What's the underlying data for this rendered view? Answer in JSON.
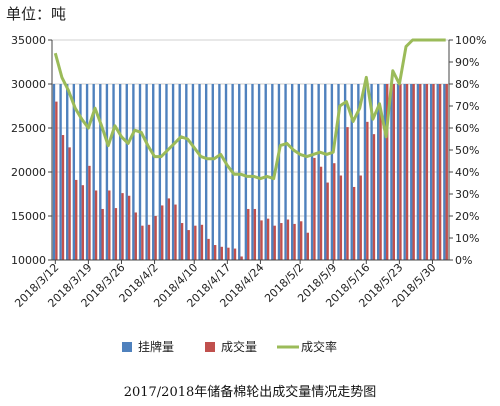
{
  "unit_label": "单位：吨",
  "caption": "2017/2018年储备棉轮出成交量情况走势图",
  "colors": {
    "listed": "#4f81bd",
    "traded": "#c0504d",
    "rate": "#9bbb59",
    "grid": "#d0d0d0",
    "axis": "#444444"
  },
  "chart_data": {
    "type": "bar",
    "title": "2017/2018年储备棉轮出成交量情况走势图",
    "ylabel": "单位：吨",
    "ylim": [
      10000,
      35000
    ],
    "y2lim": [
      0,
      100
    ],
    "yticks": [
      "10000",
      "15000",
      "20000",
      "25000",
      "30000",
      "35000"
    ],
    "y2ticks": [
      "0%",
      "10%",
      "20%",
      "30%",
      "40%",
      "50%",
      "60%",
      "70%",
      "80%",
      "90%",
      "100%"
    ],
    "legend_position": "bottom",
    "grid": true,
    "x_tick_labels": [
      "2018/3/12",
      "2018/3/19",
      "2018/3/26",
      "2018/4/2",
      "2018/4/10",
      "2018/4/17",
      "2018/4/24",
      "2018/5/2",
      "2018/5/9",
      "2018/5/16",
      "2018/5/23",
      "2018/5/30"
    ],
    "x_tick_positions": [
      0,
      5,
      10,
      15,
      21,
      26,
      31,
      37,
      42,
      47,
      52,
      57
    ],
    "num_sessions": 60,
    "series": [
      {
        "name": "挂牌量",
        "kind": "bar",
        "values": [
          30000,
          30000,
          30000,
          30000,
          30000,
          30000,
          30000,
          30000,
          30000,
          30000,
          30000,
          30000,
          30000,
          30000,
          30000,
          30000,
          30000,
          30000,
          30000,
          30000,
          30000,
          30000,
          30000,
          30000,
          30000,
          30000,
          30000,
          30000,
          30000,
          30000,
          30000,
          30000,
          30000,
          30000,
          30000,
          30000,
          30000,
          30000,
          30000,
          30000,
          30000,
          30000,
          30000,
          30000,
          30000,
          30000,
          30000,
          30000,
          30000,
          30000,
          30000,
          30000,
          30000,
          30000,
          30000,
          30000,
          30000,
          30000,
          30000,
          30000
        ]
      },
      {
        "name": "成交量",
        "kind": "bar",
        "values": [
          28000,
          24200,
          22800,
          19100,
          18500,
          20700,
          17900,
          15800,
          17900,
          15900,
          17600,
          17300,
          15400,
          13900,
          14000,
          15000,
          16200,
          17000,
          16300,
          14200,
          13400,
          13900,
          14000,
          12400,
          11700,
          11500,
          11400,
          11300,
          10400,
          15800,
          15800,
          14500,
          14700,
          13900,
          14200,
          14600,
          14100,
          14400,
          13100,
          21600,
          20600,
          18800,
          21000,
          19600,
          25100,
          18300,
          19600,
          25700,
          24300,
          27000,
          30000,
          30000,
          30000,
          30000,
          30000,
          30000,
          30000,
          30000,
          30000,
          30000
        ]
      },
      {
        "name": "成交率",
        "kind": "line",
        "values": [
          94,
          83,
          77,
          69,
          64,
          60,
          69,
          61,
          52,
          61,
          56,
          53,
          59,
          58,
          52,
          47,
          47,
          50,
          53,
          56,
          55,
          51,
          47,
          46,
          46,
          48,
          43,
          39,
          39,
          38,
          38,
          37,
          38,
          37,
          52,
          53,
          50,
          48,
          47,
          48,
          49,
          48,
          49,
          70,
          72,
          63,
          69,
          83,
          64,
          71,
          56,
          86,
          80,
          97,
          100,
          100,
          100,
          100,
          100,
          100
        ]
      }
    ]
  }
}
